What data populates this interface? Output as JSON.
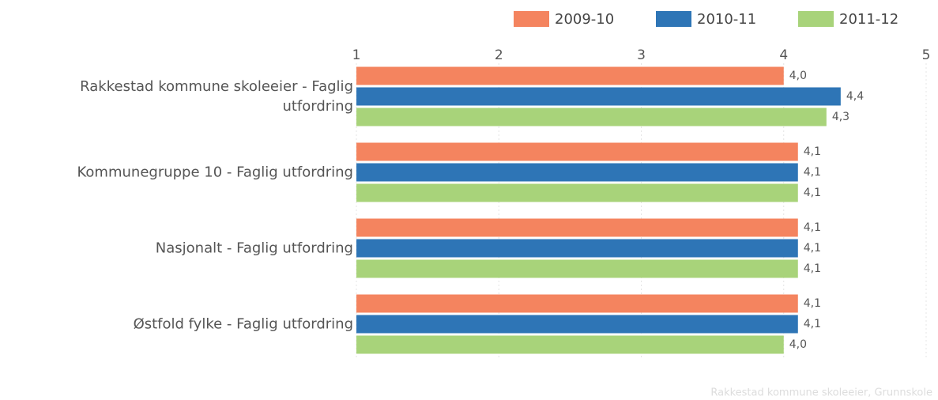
{
  "chart_data": {
    "type": "bar",
    "orientation": "horizontal",
    "categories": [
      "Rakkestad kommune skoleeier - Faglig utfordring",
      "Kommunegruppe 10 - Faglig utfordring",
      "Nasjonalt - Faglig utfordring",
      "Østfold fylke - Faglig utfordring"
    ],
    "series": [
      {
        "name": "2009-10",
        "color": "#f4845f",
        "values": [
          4.0,
          4.1,
          4.1,
          4.1
        ],
        "value_labels": [
          "4,0",
          "4,1",
          "4,1",
          "4,1"
        ]
      },
      {
        "name": "2010-11",
        "color": "#2e75b6",
        "values": [
          4.4,
          4.1,
          4.1,
          4.1
        ],
        "value_labels": [
          "4,4",
          "4,1",
          "4,1",
          "4,1"
        ]
      },
      {
        "name": "2011-12",
        "color": "#a8d37a",
        "values": [
          4.3,
          4.1,
          4.1,
          4.0
        ],
        "value_labels": [
          "4,3",
          "4,1",
          "4,1",
          "4,0"
        ]
      }
    ],
    "xlim": [
      1,
      5
    ],
    "xticks": [
      1,
      2,
      3,
      4,
      5
    ],
    "grid": true,
    "legend": "top-right",
    "source": "Rakkestad kommune skoleeier, Grunnskole"
  }
}
